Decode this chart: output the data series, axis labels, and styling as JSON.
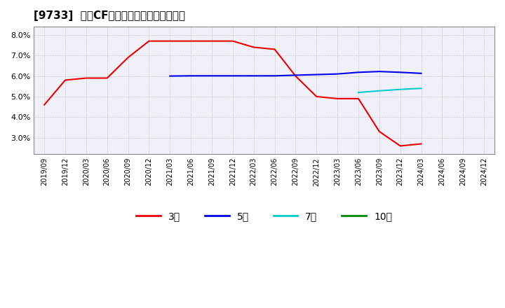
{
  "title": "[9733]  営業CFマージンの標準偏差の推移",
  "ylim": [
    0.022,
    0.084
  ],
  "yticks": [
    0.03,
    0.04,
    0.05,
    0.06,
    0.07,
    0.08
  ],
  "background_color": "#ffffff",
  "plot_bg_color": "#f0f0f8",
  "grid_color": "#aaaaaa",
  "x_labels": [
    "2019/09",
    "2019/12",
    "2020/03",
    "2020/06",
    "2020/09",
    "2020/12",
    "2021/03",
    "2021/06",
    "2021/09",
    "2021/12",
    "2022/03",
    "2022/06",
    "2022/09",
    "2022/12",
    "2023/03",
    "2023/06",
    "2023/09",
    "2023/12",
    "2024/03",
    "2024/06",
    "2024/09",
    "2024/12"
  ],
  "series_3y": {
    "color": "#ee0000",
    "label": "3年",
    "x": [
      0,
      1,
      2,
      3,
      4,
      5,
      6,
      7,
      8,
      9,
      10,
      11,
      12,
      13,
      14,
      15,
      16,
      17,
      18
    ],
    "y": [
      0.046,
      0.058,
      0.059,
      0.059,
      0.069,
      0.077,
      0.077,
      0.077,
      0.077,
      0.077,
      0.074,
      0.073,
      0.06,
      0.05,
      0.049,
      0.049,
      0.033,
      0.026,
      0.027
    ]
  },
  "series_5y": {
    "color": "#0000ee",
    "label": "5年",
    "x": [
      6,
      7,
      8,
      9,
      10,
      11,
      12,
      13,
      14,
      15,
      16,
      17,
      18
    ],
    "y": [
      0.06,
      0.0601,
      0.0601,
      0.0601,
      0.0601,
      0.0601,
      0.0604,
      0.0607,
      0.061,
      0.0618,
      0.0622,
      0.0618,
      0.0613
    ]
  },
  "series_7y": {
    "color": "#00cccc",
    "label": "7年",
    "x": [
      15,
      16,
      17,
      18
    ],
    "y": [
      0.052,
      0.0528,
      0.0535,
      0.054
    ]
  },
  "series_10y": {
    "color": "#008800",
    "label": "10年",
    "x": [],
    "y": []
  },
  "legend_items": [
    "3年",
    "5年",
    "7年",
    "10年"
  ],
  "legend_colors": [
    "#ee0000",
    "#0000ee",
    "#00cccc",
    "#008800"
  ]
}
